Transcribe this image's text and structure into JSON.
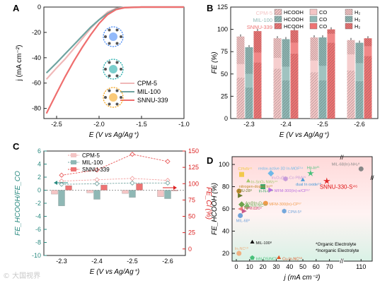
{
  "panel_labels": [
    "A",
    "B",
    "C",
    "D"
  ],
  "watermark": "© 大国视界",
  "chart_data": [
    {
      "panel": "A",
      "type": "line",
      "xlabel": "E (V vs Ag/Ag⁺)",
      "ylabel": "j (mA cm⁻²)",
      "xlim": [
        -2.65,
        -1.0
      ],
      "ylim": [
        -88,
        0
      ],
      "xticks": [
        -2.5,
        -2.0,
        -1.5,
        -1.0
      ],
      "yticks": [
        0,
        -20,
        -40,
        -60,
        -80
      ],
      "legend_position": "center-right",
      "series": [
        {
          "name": "CPM-5",
          "color": "#f0b8b8",
          "points": [
            [
              -2.62,
              -57
            ],
            [
              -2.5,
              -48
            ],
            [
              -2.4,
              -41
            ],
            [
              -2.3,
              -33
            ],
            [
              -2.2,
              -25
            ],
            [
              -2.1,
              -17
            ],
            [
              -2.0,
              -10
            ],
            [
              -1.9,
              -4
            ],
            [
              -1.8,
              -1
            ],
            [
              -1.7,
              -0.3
            ],
            [
              -1.5,
              0
            ],
            [
              -1.0,
              0
            ]
          ]
        },
        {
          "name": "MIL-100",
          "color": "#6fa3a0",
          "points": [
            [
              -2.62,
              -52
            ],
            [
              -2.5,
              -44
            ],
            [
              -2.4,
              -37
            ],
            [
              -2.3,
              -30
            ],
            [
              -2.2,
              -23
            ],
            [
              -2.1,
              -16
            ],
            [
              -2.0,
              -10
            ],
            [
              -1.9,
              -5
            ],
            [
              -1.8,
              -1.5
            ],
            [
              -1.7,
              -0.4
            ],
            [
              -1.5,
              0
            ],
            [
              -1.0,
              0
            ]
          ]
        },
        {
          "name": "SNNU-339",
          "color": "#ef6e6e",
          "points": [
            [
              -2.62,
              -84
            ],
            [
              -2.5,
              -68
            ],
            [
              -2.4,
              -55
            ],
            [
              -2.3,
              -43
            ],
            [
              -2.2,
              -32
            ],
            [
              -2.1,
              -22
            ],
            [
              -2.0,
              -13
            ],
            [
              -1.9,
              -6
            ],
            [
              -1.8,
              -2
            ],
            [
              -1.7,
              -0.5
            ],
            [
              -1.5,
              0
            ],
            [
              -1.0,
              0
            ]
          ]
        }
      ]
    },
    {
      "panel": "B",
      "type": "bar",
      "xlabel": "E (V vs Ag/Ag⁺)",
      "ylabel": "FE (%)",
      "ylim": [
        0,
        125
      ],
      "yticks": [
        0,
        25,
        50,
        75,
        100,
        125
      ],
      "categories": [
        "-2.3",
        "-2.4",
        "-2.5",
        "-2.6"
      ],
      "legend": {
        "materials": [
          "CPM-5",
          "MIL-100",
          "SNNU-339"
        ],
        "products": [
          "HCOOH",
          "CO",
          "H₂"
        ]
      },
      "series": [
        {
          "name": "CPM-5",
          "color": "#f4c5c5",
          "HCOOH": [
            46,
            56,
            52,
            54
          ],
          "CO": [
            15,
            12,
            13,
            18
          ],
          "H2": [
            31,
            22,
            26,
            16
          ],
          "total": [
            92,
            90,
            91,
            88
          ]
        },
        {
          "name": "MIL-100",
          "color": "#8fb8b5",
          "HCOOH": [
            35,
            43,
            43,
            42
          ],
          "CO": [
            15,
            15,
            16,
            20
          ],
          "H2": [
            30,
            31,
            32,
            23
          ],
          "total": [
            80,
            89,
            91,
            85
          ]
        },
        {
          "name": "SNNU-339",
          "color": "#ee7373",
          "HCOOH": [
            63,
            73,
            85,
            70
          ],
          "CO": [
            11,
            12,
            10,
            11
          ],
          "H2": [
            24,
            14,
            5,
            9
          ],
          "total": [
            98,
            99,
            100,
            90
          ]
        }
      ]
    },
    {
      "panel": "C",
      "type": "bar",
      "xlabel": "E (V vs Ag/Ag⁺)",
      "ylabel_left": "FE_HCOOH/FE_CO",
      "ylabel_right": "FE_Cl (%)",
      "ylim_left": [
        -10,
        6
      ],
      "yticks_left": [
        -10,
        -8,
        -6,
        -4,
        -2,
        0,
        2,
        4,
        6
      ],
      "ylim_right": [
        -10,
        150
      ],
      "yticks_right": [
        0,
        25,
        50,
        75,
        100,
        125,
        150
      ],
      "categories": [
        "-2.3",
        "-2.4",
        "-2.5",
        "-2.6"
      ],
      "series": [
        {
          "name": "CPM-5",
          "color": "#f4c5c5",
          "line_color": "#f2a0a0",
          "bars": [
            -0.6,
            -0.4,
            -0.5,
            -1.0
          ],
          "line": [
            104,
            106,
            108,
            105
          ]
        },
        {
          "name": "MIL-100",
          "color": "#8fb8b5",
          "line_color": "#78a7a4",
          "bars": [
            -2.4,
            -1.4,
            -1.1,
            -1.3
          ],
          "line": [
            99,
            100,
            101,
            101
          ]
        },
        {
          "name": "SNNU-339",
          "color": "#ee7373",
          "line_color": "#e85a5a",
          "bars": [
            0.7,
            0.8,
            1.0,
            -0.1
          ],
          "line": [
            113,
            121,
            145,
            134
          ]
        }
      ]
    },
    {
      "panel": "D",
      "type": "scatter",
      "xlabel": "j (mA cm⁻²)",
      "ylabel": "FE_HCOOH (%)",
      "xticks": [
        0,
        10,
        20,
        30,
        40,
        50,
        60,
        70,
        110
      ],
      "yticks": [
        20,
        40,
        60,
        80,
        100
      ],
      "ylim": [
        13,
        107
      ],
      "notes": [
        "*Organic Electrolyte",
        "*Inorganic Electrolyte"
      ],
      "points": [
        {
          "label": "MIL-68(In)-NH₂⁸",
          "x": 110,
          "y": 96,
          "color": "#888888",
          "shape": "circle"
        },
        {
          "label": "CPbBi⁴¹",
          "x": 4,
          "y": 91,
          "color": "#f2c94c",
          "shape": "square"
        },
        {
          "label": "redox-active 3D In-MOF⁵⁴",
          "x": 26,
          "y": 92,
          "color": "#6fb8e8",
          "shape": "diamond"
        },
        {
          "label": "Hp-In²⁵",
          "x": 73,
          "y": 92,
          "color": "#48c07a",
          "shape": "star"
        },
        {
          "label": "In₂O₃@In-Co PBA²⁹",
          "x": 37,
          "y": 87,
          "color": "#c79bd9",
          "shape": "hexagon"
        },
        {
          "label": "In-SnOₓ NWs⁴⁴",
          "x": 9,
          "y": 85,
          "color": "#a3c86e",
          "shape": "triangle"
        },
        {
          "label": "dual In oxide⁵⁸",
          "x": 50,
          "y": 86,
          "color": "#4a9ad8",
          "shape": "triangle-up"
        },
        {
          "label": "In-N-C⁵¹",
          "x": 20,
          "y": 80,
          "color": "#39a86b",
          "shape": "square"
        },
        {
          "label": "MFM-300(In)-e/CP⁵⁷",
          "x": 26,
          "y": 77,
          "color": "#b86ee0",
          "shape": "triangle-right"
        },
        {
          "label": "nitrogen-doped In⁵³",
          "x": 2,
          "y": 76,
          "color": "#c08a2e",
          "shape": "circle"
        },
        {
          "label": "ZJU-28⁸",
          "x": 3,
          "y": 72,
          "color": "#6a7a2e",
          "shape": "triangle-right"
        },
        {
          "label": "SNNU-330-S⁴⁶",
          "x": 68,
          "y": 85,
          "color": "#e02828",
          "shape": "star"
        },
        {
          "label": "Ag@In₂O₃⁸",
          "x": 4,
          "y": 64,
          "color": "#6da34d",
          "shape": "diamond"
        },
        {
          "label": "MFM-300(In)-CP⁵⁷",
          "x": 22,
          "y": 65,
          "color": "#f09a4a",
          "shape": "circle"
        },
        {
          "label": "InN-NC⁵⁰",
          "x": 8,
          "y": 62,
          "color": "#7ab86a",
          "shape": "diamond"
        },
        {
          "label": "PP-110⁸",
          "x": 3,
          "y": 60,
          "color": "#f08080",
          "shape": "triangle-left"
        },
        {
          "label": "PP-120⁸",
          "x": 6,
          "y": 58,
          "color": "#c85a8a",
          "shape": "triangle-right"
        },
        {
          "label": "CPM-5⁸",
          "x": 36,
          "y": 58,
          "color": "#74a8dc",
          "shape": "hexagon"
        },
        {
          "label": "MIL-68⁸",
          "x": 3,
          "y": 54,
          "color": "#6fa0d8",
          "shape": "circle"
        },
        {
          "label": "MIL-100⁸",
          "x": 12,
          "y": 30,
          "color": "#111111",
          "shape": "triangle-up"
        },
        {
          "label": "In₂NC⁵⁰",
          "x": 2,
          "y": 20,
          "color": "#f0b080",
          "shape": "circle"
        },
        {
          "label": "InN-DS/NC⁵⁰",
          "x": 12,
          "y": 16,
          "color": "#48c07a",
          "shape": "pentagon"
        },
        {
          "label": "Cu-In-NC⁵⁰",
          "x": 32,
          "y": 16,
          "color": "#e05a2a",
          "shape": "triangle-up"
        }
      ]
    }
  ]
}
